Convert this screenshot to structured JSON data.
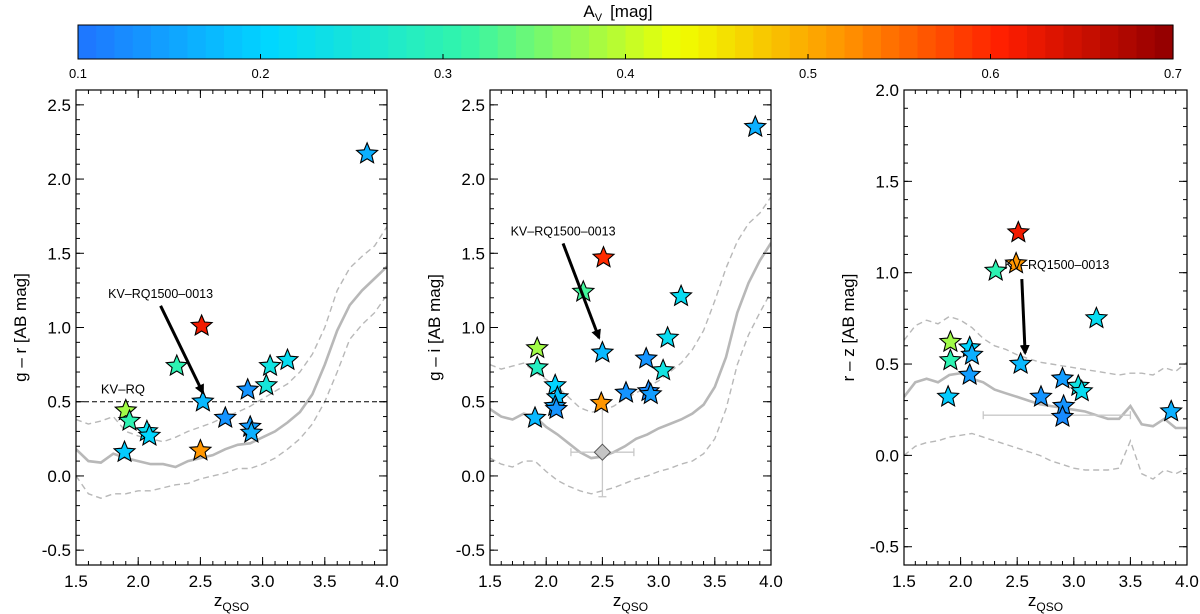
{
  "colorbar": {
    "label_main": "A",
    "label_sub": "V",
    "label_unit": "[mag]",
    "min": 0.1,
    "max": 0.7,
    "ticks": [
      "0.1",
      "0.2",
      "0.3",
      "0.4",
      "0.5",
      "0.6",
      "0.7"
    ]
  },
  "chart_data": [
    {
      "type": "scatter",
      "id": "g-r",
      "ylabel": "g – r  [AB mag]",
      "xlabel_main": "z",
      "xlabel_sub": "QSO",
      "xlim": [
        1.5,
        4.0
      ],
      "ylim": [
        -0.6,
        2.6
      ],
      "xticks": [
        "1.5",
        "2.0",
        "2.5",
        "3.0",
        "3.5",
        "4.0"
      ],
      "yticks": [
        "-0.5",
        "0.0",
        "0.5",
        "1.0",
        "1.5",
        "2.0",
        "2.5"
      ],
      "ytick_values": [
        -0.5,
        0.0,
        0.5,
        1.0,
        1.5,
        2.0,
        2.5
      ],
      "hline": {
        "y": 0.5,
        "label": "KV–RQ"
      },
      "annotation": {
        "text": "KV–RQ1500–0013",
        "tx": 2.18,
        "ty": 1.2,
        "ax": 2.52,
        "ay": 0.56
      },
      "median_track": {
        "x": [
          1.5,
          1.6,
          1.7,
          1.8,
          1.9,
          2.0,
          2.1,
          2.2,
          2.3,
          2.4,
          2.5,
          2.6,
          2.7,
          2.8,
          2.9,
          3.0,
          3.1,
          3.2,
          3.3,
          3.4,
          3.5,
          3.6,
          3.7,
          3.8,
          3.9,
          4.0
        ],
        "y": [
          0.18,
          0.1,
          0.09,
          0.15,
          0.12,
          0.1,
          0.08,
          0.08,
          0.06,
          0.1,
          0.12,
          0.14,
          0.18,
          0.21,
          0.22,
          0.26,
          0.3,
          0.36,
          0.43,
          0.55,
          0.75,
          0.98,
          1.15,
          1.25,
          1.33,
          1.41
        ]
      },
      "upper_track": {
        "x": [
          1.5,
          1.6,
          1.7,
          1.8,
          1.9,
          2.0,
          2.1,
          2.2,
          2.3,
          2.4,
          2.5,
          2.6,
          2.7,
          2.8,
          2.9,
          3.0,
          3.1,
          3.2,
          3.3,
          3.4,
          3.5,
          3.6,
          3.7,
          3.8,
          3.9,
          4.0
        ],
        "y": [
          0.38,
          0.35,
          0.37,
          0.4,
          0.3,
          0.27,
          0.25,
          0.23,
          0.26,
          0.3,
          0.33,
          0.36,
          0.4,
          0.43,
          0.47,
          0.52,
          0.57,
          0.62,
          0.7,
          0.82,
          1.0,
          1.25,
          1.4,
          1.48,
          1.55,
          1.68
        ]
      },
      "lower_track": {
        "x": [
          1.5,
          1.6,
          1.7,
          1.8,
          1.9,
          2.0,
          2.1,
          2.2,
          2.3,
          2.4,
          2.5,
          2.6,
          2.7,
          2.8,
          2.9,
          3.0,
          3.1,
          3.2,
          3.3,
          3.4,
          3.5,
          3.6,
          3.7,
          3.8,
          3.9,
          4.0
        ],
        "y": [
          0.0,
          -0.12,
          -0.15,
          -0.12,
          -0.12,
          -0.1,
          -0.1,
          -0.08,
          -0.06,
          -0.05,
          -0.02,
          0.0,
          0.02,
          0.05,
          0.05,
          0.08,
          0.12,
          0.18,
          0.25,
          0.35,
          0.5,
          0.7,
          0.92,
          1.02,
          1.1,
          1.22
        ]
      },
      "error_bar": null,
      "points": [
        {
          "x": 1.9,
          "y": 0.44,
          "av": 0.38
        },
        {
          "x": 1.93,
          "y": 0.37,
          "av": 0.3
        },
        {
          "x": 1.89,
          "y": 0.16,
          "av": 0.19
        },
        {
          "x": 2.07,
          "y": 0.3,
          "av": 0.22
        },
        {
          "x": 2.09,
          "y": 0.27,
          "av": 0.2
        },
        {
          "x": 2.31,
          "y": 0.74,
          "av": 0.3
        },
        {
          "x": 2.5,
          "y": 0.17,
          "av": 0.52
        },
        {
          "x": 2.51,
          "y": 1.01,
          "av": 0.62
        },
        {
          "x": 2.52,
          "y": 0.5,
          "av": 0.17
        },
        {
          "x": 2.7,
          "y": 0.39,
          "av": 0.13
        },
        {
          "x": 2.88,
          "y": 0.58,
          "av": 0.13
        },
        {
          "x": 2.9,
          "y": 0.33,
          "av": 0.14
        },
        {
          "x": 2.91,
          "y": 0.29,
          "av": 0.16
        },
        {
          "x": 3.03,
          "y": 0.61,
          "av": 0.25
        },
        {
          "x": 3.06,
          "y": 0.74,
          "av": 0.24
        },
        {
          "x": 3.2,
          "y": 0.78,
          "av": 0.22
        },
        {
          "x": 3.84,
          "y": 2.17,
          "av": 0.16
        }
      ]
    },
    {
      "type": "scatter",
      "id": "g-i",
      "ylabel": "g – i  [AB mag]",
      "xlabel_main": "z",
      "xlabel_sub": "QSO",
      "xlim": [
        1.5,
        4.0
      ],
      "ylim": [
        -0.6,
        2.6
      ],
      "xticks": [
        "1.5",
        "2.0",
        "2.5",
        "3.0",
        "3.5",
        "4.0"
      ],
      "yticks": [
        "-0.5",
        "0.0",
        "0.5",
        "1.0",
        "1.5",
        "2.0",
        "2.5"
      ],
      "ytick_values": [
        -0.5,
        0.0,
        0.5,
        1.0,
        1.5,
        2.0,
        2.5
      ],
      "hline": null,
      "annotation": {
        "text": "KV–RQ1500–0013",
        "tx": 2.15,
        "ty": 1.62,
        "ax": 2.47,
        "ay": 0.93
      },
      "median_track": {
        "x": [
          1.5,
          1.6,
          1.7,
          1.8,
          1.9,
          2.0,
          2.1,
          2.2,
          2.3,
          2.4,
          2.5,
          2.6,
          2.7,
          2.8,
          2.9,
          3.0,
          3.1,
          3.2,
          3.3,
          3.4,
          3.5,
          3.6,
          3.7,
          3.8,
          3.9,
          4.0
        ],
        "y": [
          0.45,
          0.4,
          0.38,
          0.42,
          0.4,
          0.33,
          0.28,
          0.22,
          0.16,
          0.12,
          0.13,
          0.16,
          0.2,
          0.25,
          0.28,
          0.32,
          0.35,
          0.38,
          0.42,
          0.48,
          0.6,
          0.8,
          1.1,
          1.3,
          1.45,
          1.57
        ]
      },
      "upper_track": {
        "x": [
          1.5,
          1.6,
          1.7,
          1.8,
          1.9,
          2.0,
          2.1,
          2.2,
          2.3,
          2.4,
          2.5,
          2.6,
          2.7,
          2.8,
          2.9,
          3.0,
          3.1,
          3.2,
          3.3,
          3.4,
          3.5,
          3.6,
          3.7,
          3.8,
          3.9,
          4.0
        ],
        "y": [
          0.75,
          0.72,
          0.74,
          0.76,
          0.7,
          0.65,
          0.6,
          0.53,
          0.46,
          0.43,
          0.44,
          0.47,
          0.52,
          0.56,
          0.6,
          0.64,
          0.7,
          0.76,
          0.85,
          0.98,
          1.18,
          1.4,
          1.58,
          1.7,
          1.77,
          1.88
        ]
      },
      "lower_track": {
        "x": [
          1.5,
          1.6,
          1.7,
          1.8,
          1.9,
          2.0,
          2.1,
          2.2,
          2.3,
          2.4,
          2.5,
          2.6,
          2.7,
          2.8,
          2.9,
          3.0,
          3.1,
          3.2,
          3.3,
          3.4,
          3.5,
          3.6,
          3.7,
          3.8,
          3.9,
          4.0
        ],
        "y": [
          0.12,
          0.08,
          0.06,
          0.1,
          0.1,
          0.03,
          -0.03,
          -0.07,
          -0.1,
          -0.12,
          -0.1,
          -0.08,
          -0.05,
          -0.02,
          0.0,
          0.03,
          0.05,
          0.08,
          0.1,
          0.15,
          0.25,
          0.45,
          0.75,
          0.95,
          1.1,
          1.24
        ]
      },
      "error_bar": {
        "x": 2.5,
        "y": 0.16,
        "xerr": 0.28,
        "yerr": 0.3
      },
      "points": [
        {
          "x": 1.92,
          "y": 0.86,
          "av": 0.38
        },
        {
          "x": 1.92,
          "y": 0.73,
          "av": 0.28
        },
        {
          "x": 1.9,
          "y": 0.39,
          "av": 0.17
        },
        {
          "x": 2.08,
          "y": 0.61,
          "av": 0.2
        },
        {
          "x": 2.1,
          "y": 0.53,
          "av": 0.18
        },
        {
          "x": 2.08,
          "y": 0.47,
          "av": 0.15
        },
        {
          "x": 2.09,
          "y": 0.45,
          "av": 0.13
        },
        {
          "x": 2.33,
          "y": 1.24,
          "av": 0.32
        },
        {
          "x": 2.51,
          "y": 1.47,
          "av": 0.6
        },
        {
          "x": 2.5,
          "y": 0.83,
          "av": 0.17
        },
        {
          "x": 2.49,
          "y": 0.49,
          "av": 0.52
        },
        {
          "x": 2.71,
          "y": 0.56,
          "av": 0.13
        },
        {
          "x": 2.89,
          "y": 0.79,
          "av": 0.13
        },
        {
          "x": 2.91,
          "y": 0.57,
          "av": 0.12
        },
        {
          "x": 2.93,
          "y": 0.55,
          "av": 0.14
        },
        {
          "x": 3.04,
          "y": 0.71,
          "av": 0.24
        },
        {
          "x": 3.08,
          "y": 0.93,
          "av": 0.22
        },
        {
          "x": 3.2,
          "y": 1.21,
          "av": 0.22
        },
        {
          "x": 3.86,
          "y": 2.35,
          "av": 0.16
        }
      ]
    },
    {
      "type": "scatter",
      "id": "r-z",
      "ylabel": "r – z  [AB mag]",
      "xlabel_main": "z",
      "xlabel_sub": "QSO",
      "xlim": [
        1.5,
        4.0
      ],
      "ylim": [
        -0.6,
        2.0
      ],
      "xticks": [
        "1.5",
        "2.0",
        "2.5",
        "3.0",
        "3.5",
        "4.0"
      ],
      "yticks": [
        "-0.5",
        "0.0",
        "0.5",
        "1.0",
        "1.5",
        "2.0"
      ],
      "ytick_values": [
        -0.5,
        0.0,
        0.5,
        1.0,
        1.5,
        2.0
      ],
      "hline": null,
      "annotation": {
        "text": "KV–RQ1500–0013",
        "tx": 2.85,
        "ty": 1.02,
        "ax": 2.57,
        "ay": 0.56
      },
      "median_track": {
        "x": [
          1.5,
          1.6,
          1.7,
          1.8,
          1.9,
          2.0,
          2.1,
          2.2,
          2.3,
          2.4,
          2.5,
          2.6,
          2.7,
          2.8,
          2.9,
          3.0,
          3.1,
          3.2,
          3.3,
          3.4,
          3.5,
          3.6,
          3.7,
          3.8,
          3.9,
          4.0
        ],
        "y": [
          0.32,
          0.4,
          0.42,
          0.4,
          0.44,
          0.45,
          0.42,
          0.4,
          0.36,
          0.34,
          0.32,
          0.3,
          0.28,
          0.27,
          0.26,
          0.25,
          0.24,
          0.22,
          0.2,
          0.2,
          0.27,
          0.17,
          0.16,
          0.2,
          0.15,
          0.15
        ]
      },
      "upper_track": {
        "x": [
          1.5,
          1.6,
          1.7,
          1.8,
          1.9,
          2.0,
          2.1,
          2.2,
          2.3,
          2.4,
          2.5,
          2.6,
          2.7,
          2.8,
          2.9,
          3.0,
          3.1,
          3.2,
          3.3,
          3.4,
          3.5,
          3.6,
          3.7,
          3.8,
          3.9,
          4.0
        ],
        "y": [
          0.63,
          0.71,
          0.74,
          0.72,
          0.76,
          0.74,
          0.7,
          0.64,
          0.6,
          0.58,
          0.55,
          0.53,
          0.51,
          0.5,
          0.49,
          0.48,
          0.47,
          0.46,
          0.45,
          0.44,
          0.45,
          0.45,
          0.44,
          0.48,
          0.46,
          0.51
        ]
      },
      "lower_track": {
        "x": [
          1.5,
          1.6,
          1.7,
          1.8,
          1.9,
          2.0,
          2.1,
          2.2,
          2.3,
          2.4,
          2.5,
          2.6,
          2.7,
          2.8,
          2.9,
          3.0,
          3.1,
          3.2,
          3.3,
          3.4,
          3.5,
          3.6,
          3.7,
          3.8,
          3.9,
          4.0
        ],
        "y": [
          0.0,
          0.05,
          0.07,
          0.08,
          0.1,
          0.11,
          0.12,
          0.1,
          0.08,
          0.06,
          0.04,
          0.02,
          0.0,
          -0.03,
          -0.05,
          -0.07,
          -0.08,
          -0.08,
          -0.08,
          -0.07,
          0.08,
          -0.1,
          -0.13,
          -0.08,
          -0.1,
          -0.07
        ]
      },
      "error_bar": {
        "x": 2.85,
        "y": 0.22,
        "xerr": 0.65,
        "yerr": 0.0
      },
      "points": [
        {
          "x": 1.91,
          "y": 0.62,
          "av": 0.38
        },
        {
          "x": 1.91,
          "y": 0.52,
          "av": 0.3
        },
        {
          "x": 1.89,
          "y": 0.32,
          "av": 0.19
        },
        {
          "x": 2.08,
          "y": 0.59,
          "av": 0.2
        },
        {
          "x": 2.1,
          "y": 0.55,
          "av": 0.16
        },
        {
          "x": 2.08,
          "y": 0.44,
          "av": 0.14
        },
        {
          "x": 2.31,
          "y": 1.01,
          "av": 0.3
        },
        {
          "x": 2.51,
          "y": 1.22,
          "av": 0.62
        },
        {
          "x": 2.49,
          "y": 1.05,
          "av": 0.52
        },
        {
          "x": 2.53,
          "y": 0.5,
          "av": 0.17
        },
        {
          "x": 2.71,
          "y": 0.32,
          "av": 0.13
        },
        {
          "x": 2.9,
          "y": 0.42,
          "av": 0.14
        },
        {
          "x": 2.91,
          "y": 0.27,
          "av": 0.13
        },
        {
          "x": 2.9,
          "y": 0.21,
          "av": 0.12
        },
        {
          "x": 3.04,
          "y": 0.38,
          "av": 0.24
        },
        {
          "x": 3.07,
          "y": 0.35,
          "av": 0.22
        },
        {
          "x": 3.2,
          "y": 0.75,
          "av": 0.22
        },
        {
          "x": 3.86,
          "y": 0.24,
          "av": 0.16
        }
      ]
    }
  ]
}
